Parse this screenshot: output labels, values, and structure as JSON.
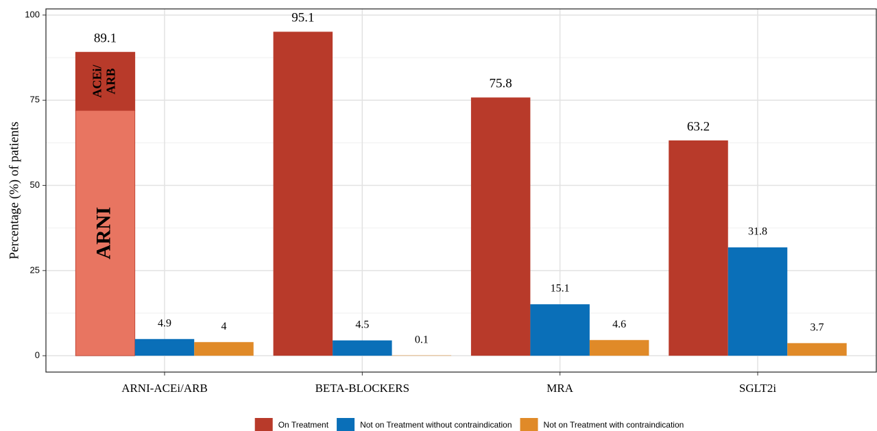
{
  "chart_data": {
    "type": "bar",
    "ylabel": "Percentage (%) of patients",
    "categories": [
      "ARNI-ACEi/ARB",
      "BETA-BLOCKERS",
      "MRA",
      "SGLT2i"
    ],
    "series": [
      {
        "name": "On Treatment",
        "color": "#b83a2a",
        "values": [
          89.1,
          95.1,
          75.8,
          63.2
        ]
      },
      {
        "name": "Not on Treatment without contraindication",
        "color": "#0a6fb8",
        "values": [
          4.9,
          4.5,
          15.1,
          31.8
        ]
      },
      {
        "name": "Not on Treatment with contraindication",
        "color": "#e08a28",
        "values": [
          4,
          0.1,
          4.6,
          3.7
        ]
      }
    ],
    "breakdown": {
      "series": 0,
      "category": 0,
      "parts": [
        {
          "name": "ARNI",
          "color": "#e87561",
          "value": 72.0
        },
        {
          "label_lines": [
            "ACEi/",
            "ARB"
          ],
          "color": "#b83a2a",
          "value": 17.1
        }
      ]
    },
    "ylim": [
      -4.8,
      101.8
    ],
    "yticks": [
      0,
      25,
      50,
      75,
      100
    ],
    "grid": true,
    "minor_grid": true,
    "legend": "bottom"
  }
}
